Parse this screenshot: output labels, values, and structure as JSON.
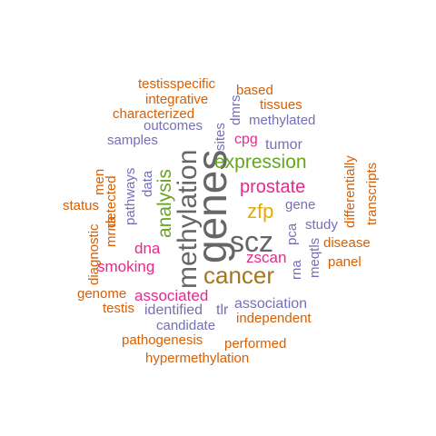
{
  "colors": {
    "gray": "#666666",
    "brown": "#a6761d",
    "gold": "#e6ab02",
    "green": "#66a61e",
    "pink": "#e7298a",
    "purple": "#7570b3",
    "orange": "#d95f02",
    "teal": "#1b9e77"
  },
  "words": [
    {
      "text": "genes",
      "color": "#666666"
    },
    {
      "text": "methylation",
      "color": "#666666"
    },
    {
      "text": "scz",
      "color": "#666666"
    },
    {
      "text": "cancer",
      "color": "#a6761d"
    },
    {
      "text": "zfp",
      "color": "#e6ab02"
    },
    {
      "text": "expression",
      "color": "#66a61e"
    },
    {
      "text": "analysis",
      "color": "#66a61e"
    },
    {
      "text": "prostate",
      "color": "#e7298a"
    },
    {
      "text": "smoking",
      "color": "#e7298a"
    },
    {
      "text": "dna",
      "color": "#e7298a"
    },
    {
      "text": "zscan",
      "color": "#e7298a"
    },
    {
      "text": "associated",
      "color": "#e7298a"
    },
    {
      "text": "cpg",
      "color": "#e7298a"
    },
    {
      "text": "association",
      "color": "#7570b3"
    },
    {
      "text": "tumor",
      "color": "#7570b3"
    },
    {
      "text": "gene",
      "color": "#7570b3"
    },
    {
      "text": "study",
      "color": "#7570b3"
    },
    {
      "text": "identified",
      "color": "#7570b3"
    },
    {
      "text": "tlr",
      "color": "#7570b3"
    },
    {
      "text": "candidate",
      "color": "#7570b3"
    },
    {
      "text": "methylated",
      "color": "#7570b3"
    },
    {
      "text": "outcomes",
      "color": "#7570b3"
    },
    {
      "text": "samples",
      "color": "#7570b3"
    },
    {
      "text": "pathways",
      "color": "#7570b3"
    },
    {
      "text": "data",
      "color": "#7570b3"
    },
    {
      "text": "sites",
      "color": "#7570b3"
    },
    {
      "text": "dmrs",
      "color": "#7570b3"
    },
    {
      "text": "pca",
      "color": "#7570b3"
    },
    {
      "text": "rna",
      "color": "#7570b3"
    },
    {
      "text": "meqtls",
      "color": "#7570b3"
    },
    {
      "text": "testisspecific",
      "color": "#d95f02"
    },
    {
      "text": "integrative",
      "color": "#d95f02"
    },
    {
      "text": "based",
      "color": "#d95f02"
    },
    {
      "text": "tissues",
      "color": "#d95f02"
    },
    {
      "text": "characterized",
      "color": "#d95f02"
    },
    {
      "text": "men",
      "color": "#d95f02"
    },
    {
      "text": "detected",
      "color": "#d95f02"
    },
    {
      "text": "status",
      "color": "#d95f02"
    },
    {
      "text": "mrna",
      "color": "#d95f02"
    },
    {
      "text": "diagnostic",
      "color": "#d95f02"
    },
    {
      "text": "genome",
      "color": "#d95f02"
    },
    {
      "text": "testis",
      "color": "#d95f02"
    },
    {
      "text": "pathogenesis",
      "color": "#d95f02"
    },
    {
      "text": "performed",
      "color": "#d95f02"
    },
    {
      "text": "hypermethylation",
      "color": "#d95f02"
    },
    {
      "text": "independent",
      "color": "#d95f02"
    },
    {
      "text": "differentially",
      "color": "#d95f02"
    },
    {
      "text": "transcripts",
      "color": "#d95f02"
    },
    {
      "text": "disease",
      "color": "#d95f02"
    },
    {
      "text": "panel",
      "color": "#d95f02"
    }
  ]
}
